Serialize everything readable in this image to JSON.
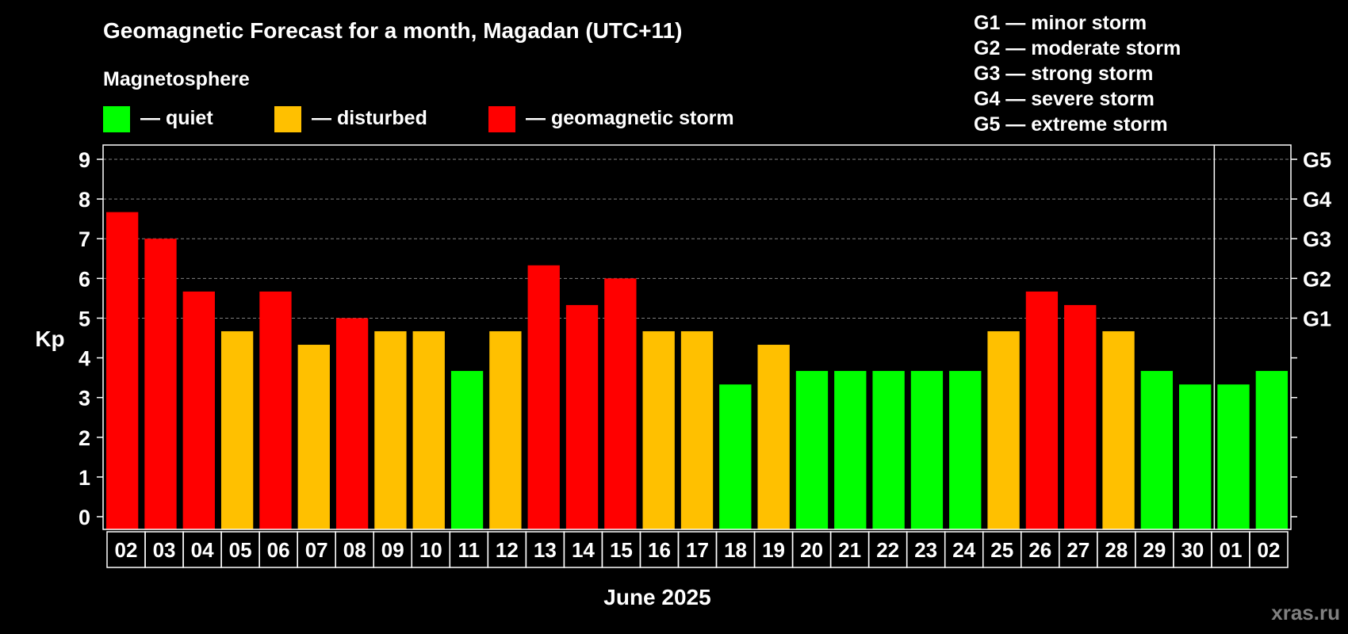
{
  "chart_data": {
    "type": "bar",
    "title": "Geomagnetic Forecast for a month, Magadan (UTC+11)",
    "legend_title": "Magnetosphere",
    "legend": [
      {
        "label": "— quiet",
        "color": "#00ff00"
      },
      {
        "label": "— disturbed",
        "color": "#ffc000"
      },
      {
        "label": "— geomagnetic storm",
        "color": "#ff0000"
      }
    ],
    "g_scale_legend": [
      "G1 — minor storm",
      "G2 — moderate storm",
      "G3 — strong storm",
      "G4 — severe storm",
      "G5 — extreme storm"
    ],
    "ylabel": "Kp",
    "xlabel": "June 2025",
    "ylim": [
      0,
      9
    ],
    "y_ticks": [
      "0",
      "1",
      "2",
      "3",
      "4",
      "5",
      "6",
      "7",
      "8",
      "9"
    ],
    "right_axis": [
      {
        "label": "G1",
        "kp": 5
      },
      {
        "label": "G2",
        "kp": 6
      },
      {
        "label": "G3",
        "kp": 7
      },
      {
        "label": "G4",
        "kp": 8
      },
      {
        "label": "G5",
        "kp": 9
      }
    ],
    "month_divider_after_index": 28,
    "categories": [
      "02",
      "03",
      "04",
      "05",
      "06",
      "07",
      "08",
      "09",
      "10",
      "11",
      "12",
      "13",
      "14",
      "15",
      "16",
      "17",
      "18",
      "19",
      "20",
      "21",
      "22",
      "23",
      "24",
      "25",
      "26",
      "27",
      "28",
      "29",
      "30",
      "01",
      "02"
    ],
    "values": [
      7.67,
      7.0,
      5.67,
      4.67,
      5.67,
      4.33,
      5.0,
      4.67,
      4.67,
      3.67,
      4.67,
      6.33,
      5.33,
      6.0,
      4.67,
      4.67,
      3.33,
      4.33,
      3.67,
      3.67,
      3.67,
      3.67,
      3.67,
      4.67,
      5.67,
      5.33,
      4.67,
      3.67,
      3.33,
      3.33,
      3.67
    ],
    "status": [
      "storm",
      "storm",
      "storm",
      "disturbed",
      "storm",
      "disturbed",
      "storm",
      "disturbed",
      "disturbed",
      "quiet",
      "disturbed",
      "storm",
      "storm",
      "storm",
      "disturbed",
      "disturbed",
      "quiet",
      "disturbed",
      "quiet",
      "quiet",
      "quiet",
      "quiet",
      "quiet",
      "disturbed",
      "storm",
      "storm",
      "disturbed",
      "quiet",
      "quiet",
      "quiet",
      "quiet"
    ],
    "colors": {
      "quiet": "#00ff00",
      "disturbed": "#ffc000",
      "storm": "#ff0000"
    },
    "grid": true
  },
  "watermark": "xras.ru"
}
